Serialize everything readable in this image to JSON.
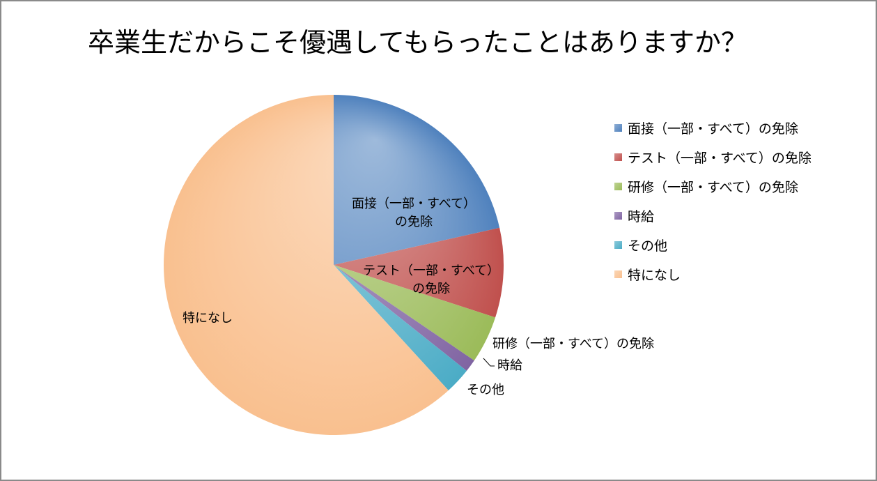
{
  "chart_data": {
    "type": "pie",
    "title": "卒業生だからこそ優遇してもらったことはありますか？",
    "categories": [
      "面接（一部・すべて）の免除",
      "テスト（一部・すべて）の免除",
      "研修（一部・すべて）の免除",
      "時給",
      "その他",
      "特になし"
    ],
    "values": [
      21.5,
      8.5,
      4.5,
      1.2,
      2.5,
      61.8
    ],
    "colors": [
      "#4f81bd",
      "#c0504d",
      "#9bbb59",
      "#8064a2",
      "#4bacc6",
      "#f9c08f"
    ],
    "data_labels": [
      "面接（一部・すべて）の免除",
      "テスト（一部・すべて）の免除",
      "研修（一部・すべて）の免除",
      "時給",
      "その他",
      "特になし"
    ],
    "legend_position": "right"
  }
}
